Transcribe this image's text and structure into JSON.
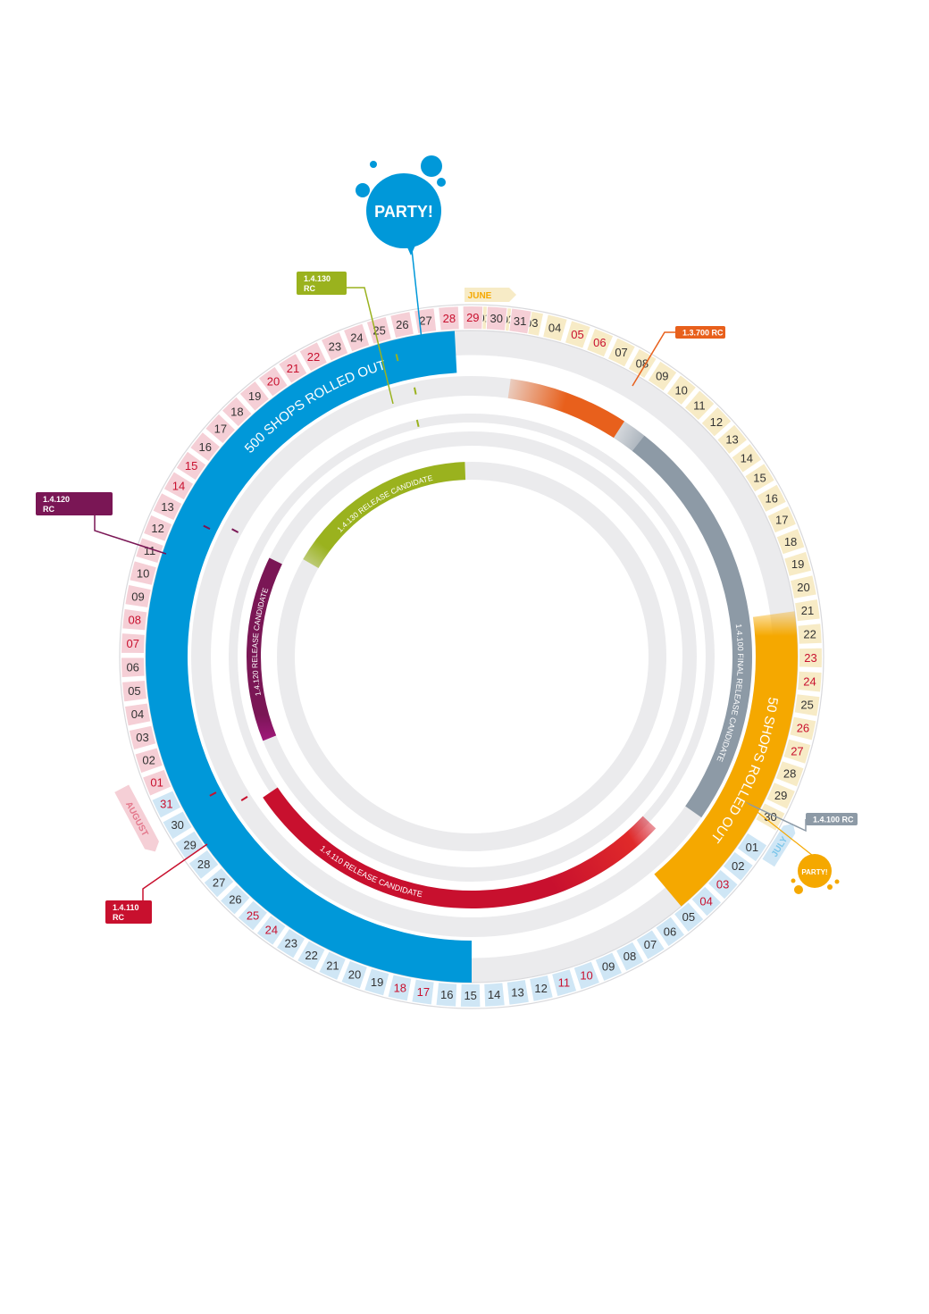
{
  "months": [
    {
      "name": "JUNE",
      "color": "#f5a800",
      "band": "#f7ebc6"
    },
    {
      "name": "JULY",
      "color": "#7cc6ea",
      "band": "#cfe6f5"
    },
    {
      "name": "AUGUST",
      "color": "#e3778b",
      "band": "#f5cfd6"
    }
  ],
  "day_ring": {
    "june": [
      "01",
      "02",
      "03",
      "04",
      "05",
      "06",
      "07",
      "08",
      "09",
      "10",
      "11",
      "12",
      "13",
      "14",
      "15",
      "16",
      "17",
      "18",
      "19",
      "20",
      "21",
      "22",
      "23",
      "24",
      "25",
      "26",
      "27",
      "28",
      "29",
      "30"
    ],
    "june_highlight": [
      "05",
      "06",
      "23",
      "24",
      "26",
      "27"
    ],
    "july": [
      "01",
      "02",
      "03",
      "04",
      "05",
      "06",
      "07",
      "08",
      "09",
      "10",
      "11",
      "12",
      "13",
      "14",
      "15",
      "16",
      "17",
      "18",
      "19",
      "20",
      "21",
      "22",
      "23",
      "24",
      "25",
      "26",
      "27",
      "28",
      "29",
      "30",
      "31"
    ],
    "july_highlight": [
      "03",
      "04",
      "10",
      "11",
      "17",
      "18",
      "24",
      "25",
      "31"
    ],
    "august": [
      "01",
      "02",
      "03",
      "04",
      "05",
      "06",
      "07",
      "08",
      "09",
      "10",
      "11",
      "12",
      "13",
      "14",
      "15",
      "16",
      "17",
      "18",
      "19",
      "20",
      "21",
      "22",
      "23",
      "24",
      "25",
      "26",
      "27",
      "28",
      "29",
      "30",
      "31"
    ],
    "august_highlight": [
      "01",
      "07",
      "08",
      "14",
      "15",
      "20",
      "21",
      "22",
      "28",
      "29"
    ]
  },
  "arcs": {
    "shops500": {
      "label": "500 SHOPS ROLLED OUT",
      "color": "#0098d9"
    },
    "shops50": {
      "label": "50 SHOPS ROLLED OUT",
      "color": "#f5a800"
    },
    "rc13700": {
      "color": "#e8601c"
    },
    "final100": {
      "label": "1.4.100 FINAL RELEASE CANDIDATE",
      "color": "#8d9aa6"
    },
    "rc110": {
      "label": "1.4.110 RELEASE CANDIDATE",
      "color": "#c8102e"
    },
    "rc120": {
      "label": "1.4.120 RELEASE CANDIDATE",
      "color": "#7a1655"
    },
    "rc130": {
      "label": "1.4.130 RELEASE CANDIDATE",
      "color": "#9ab21e"
    }
  },
  "flags": {
    "f130": {
      "line1": "1.4.130",
      "line2": "RC",
      "color": "#9ab21e"
    },
    "f13700": {
      "line1": "1.3.700 RC",
      "color": "#e8601c"
    },
    "f120": {
      "line1": "1.4.120",
      "line2": "RC",
      "color": "#7a1655"
    },
    "f110": {
      "line1": "1.4.110",
      "line2": "RC",
      "color": "#c8102e"
    },
    "f100": {
      "line1": "1.4.100 RC",
      "color": "#8d9aa6"
    }
  },
  "party_big": {
    "label": "PARTY!",
    "color": "#0098d9"
  },
  "party_small": {
    "label": "PARTY!",
    "color": "#f5a800"
  },
  "colors": {
    "track": "#ebebed",
    "highlight_text": "#c8102e",
    "day_text": "#333333"
  }
}
